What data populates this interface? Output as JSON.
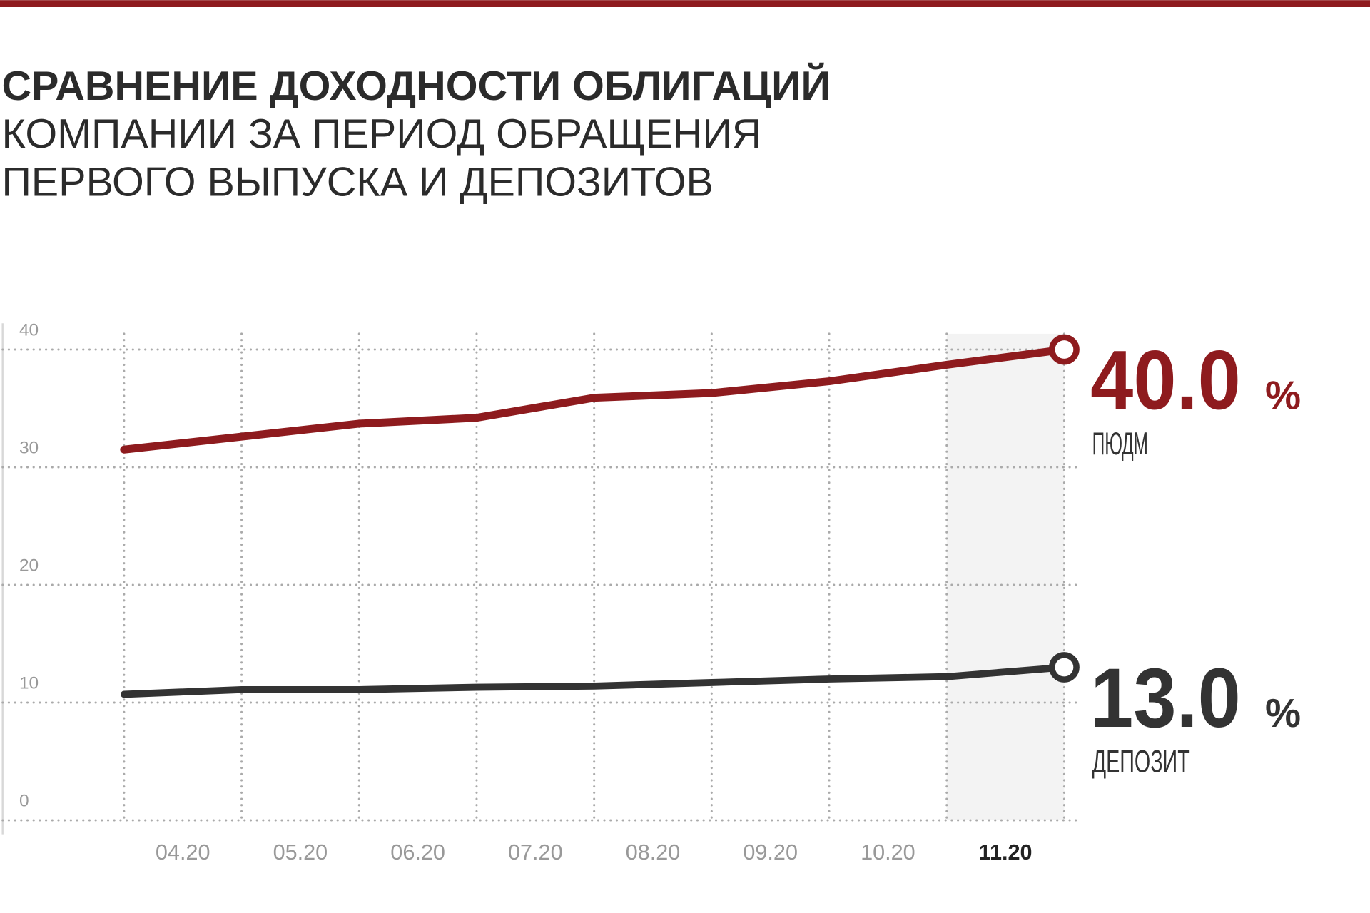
{
  "chart_data": {
    "type": "line",
    "title": "СРАВНЕНИЕ ДОХОДНОСТИ ОБЛИГАЦИЙ",
    "subtitle": [
      "КОМПАНИИ ЗА ПЕРИОД ОБРАЩЕНИЯ",
      "ПЕРВОГО ВЫПУСКА И ДЕПОЗИТОВ"
    ],
    "categories": [
      null,
      "04.20",
      "05.20",
      "06.20",
      "07.20",
      "08.20",
      "09.20",
      "10.20",
      "11.20"
    ],
    "highlight_category": 8,
    "series": [
      {
        "name": "ПЮДМ",
        "color": "#8e1b1e",
        "values": [
          31.5,
          32.6,
          33.7,
          34.2,
          35.9,
          36.3,
          37.3,
          38.7,
          40.0
        ],
        "end_label": "40.0",
        "unit_label": "%"
      },
      {
        "name": "ДЕПОЗИТ",
        "color": "#333333",
        "values": [
          10.7,
          11.1,
          11.1,
          11.3,
          11.4,
          11.7,
          12.0,
          12.2,
          13.0
        ],
        "end_label": "13.0",
        "unit_label": "%"
      }
    ],
    "ylim": [
      0,
      40
    ],
    "yticks": [
      0,
      10,
      20,
      30,
      40
    ],
    "grid": true
  }
}
